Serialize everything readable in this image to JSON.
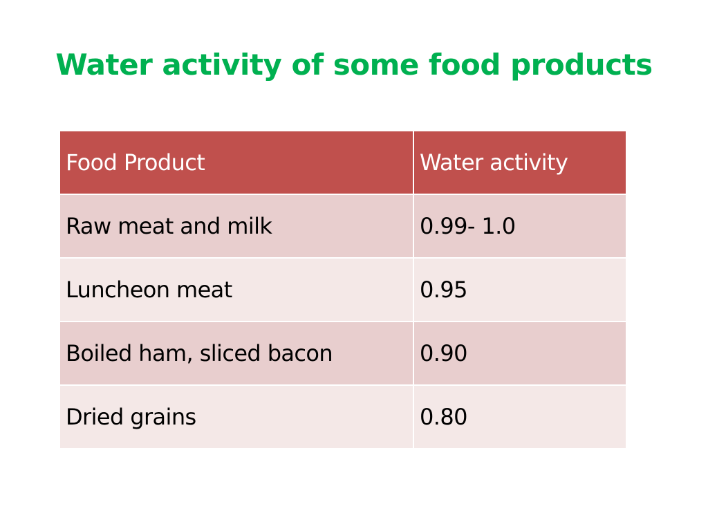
{
  "slide": {
    "title": "Water activity of some food products"
  },
  "table": {
    "headers": [
      "Food Product",
      "Water activity"
    ],
    "rows": [
      [
        "Raw meat and milk",
        "0.99- 1.0"
      ],
      [
        "Luncheon meat",
        "0.95"
      ],
      [
        "Boiled ham, sliced bacon",
        "0.90"
      ],
      [
        "Dried grains",
        "0.80"
      ]
    ]
  },
  "colors": {
    "title": "#00b050",
    "header_fill": "#c0504d",
    "header_text": "#ffffff",
    "row_fill_dark": "#e8cece",
    "row_fill_light": "#f4e8e7"
  }
}
